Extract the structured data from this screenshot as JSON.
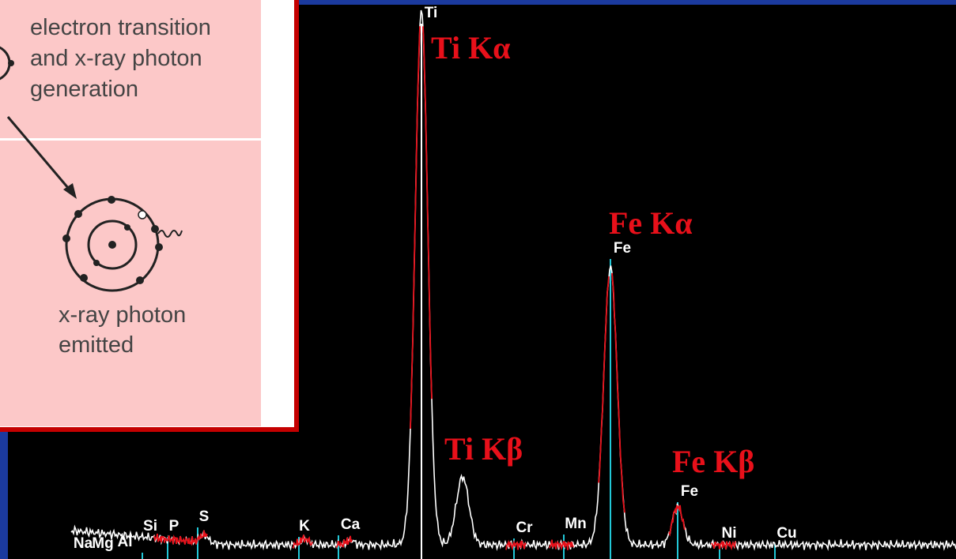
{
  "inset": {
    "caption_top": [
      "electron transition",
      "and x-ray photon",
      "generation"
    ],
    "caption_bottom": [
      "x-ray photon",
      "emitted"
    ]
  },
  "element_labels": [
    "Na",
    "Mg",
    "Al",
    "Si",
    "P",
    "S",
    "K",
    "Ca",
    "Ti",
    "Cr",
    "Mn",
    "Fe",
    "Fe",
    "Ni",
    "Cu"
  ],
  "peak_labels": [
    "Ti Kα",
    "Ti Kβ",
    "Fe Kα",
    "Fe Kβ"
  ]
}
